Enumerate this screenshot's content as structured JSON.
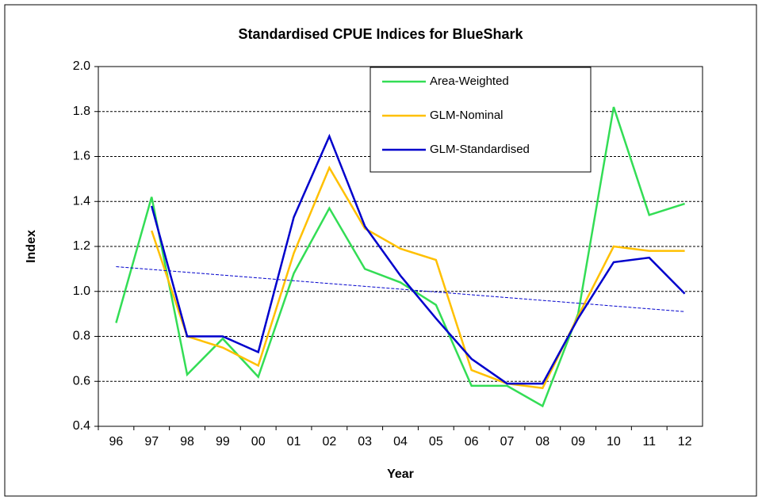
{
  "chart_data": {
    "type": "line",
    "title": "Standardised CPUE Indices for BlueShark",
    "x_label": "Year",
    "y_label": "Index",
    "categories": [
      "96",
      "97",
      "98",
      "99",
      "00",
      "01",
      "02",
      "03",
      "04",
      "05",
      "06",
      "07",
      "08",
      "09",
      "10",
      "11",
      "12"
    ],
    "series": [
      {
        "name": "Area-Weighted",
        "color": "#33dd55",
        "values": [
          0.86,
          1.42,
          0.63,
          0.79,
          0.62,
          1.08,
          1.37,
          1.1,
          1.04,
          0.94,
          0.58,
          0.58,
          0.49,
          0.9,
          1.82,
          1.34,
          1.39
        ]
      },
      {
        "name": "GLM-Nominal",
        "color": "#ffc000",
        "values": [
          null,
          1.27,
          0.8,
          0.75,
          0.67,
          1.17,
          1.55,
          1.28,
          1.19,
          1.14,
          0.65,
          0.59,
          0.57,
          0.89,
          1.2,
          1.18,
          1.18
        ]
      },
      {
        "name": "GLM-Standardised",
        "color": "#0000cc",
        "values": [
          null,
          1.38,
          0.8,
          0.8,
          0.73,
          1.33,
          1.69,
          1.29,
          1.07,
          0.88,
          0.7,
          0.59,
          0.59,
          0.88,
          1.13,
          1.15,
          0.99
        ]
      }
    ],
    "trendline": {
      "color": "#0000cc",
      "values": [
        1.11,
        0.91
      ]
    },
    "ylim": [
      0.4,
      2.0
    ],
    "yticks": [
      {
        "value": 0.4,
        "label": "0.4"
      },
      {
        "value": 0.6,
        "label": "0.6"
      },
      {
        "value": 0.8,
        "label": "0.8"
      },
      {
        "value": 1.0,
        "label": "1.0"
      },
      {
        "value": 1.2,
        "label": "1.2"
      },
      {
        "value": 1.4,
        "label": "1.4"
      },
      {
        "value": 1.6,
        "label": "1.6"
      },
      {
        "value": 1.8,
        "label": "1.8"
      },
      {
        "value": 2.0,
        "label": "2.0"
      }
    ],
    "grid": true,
    "legend": "top"
  }
}
